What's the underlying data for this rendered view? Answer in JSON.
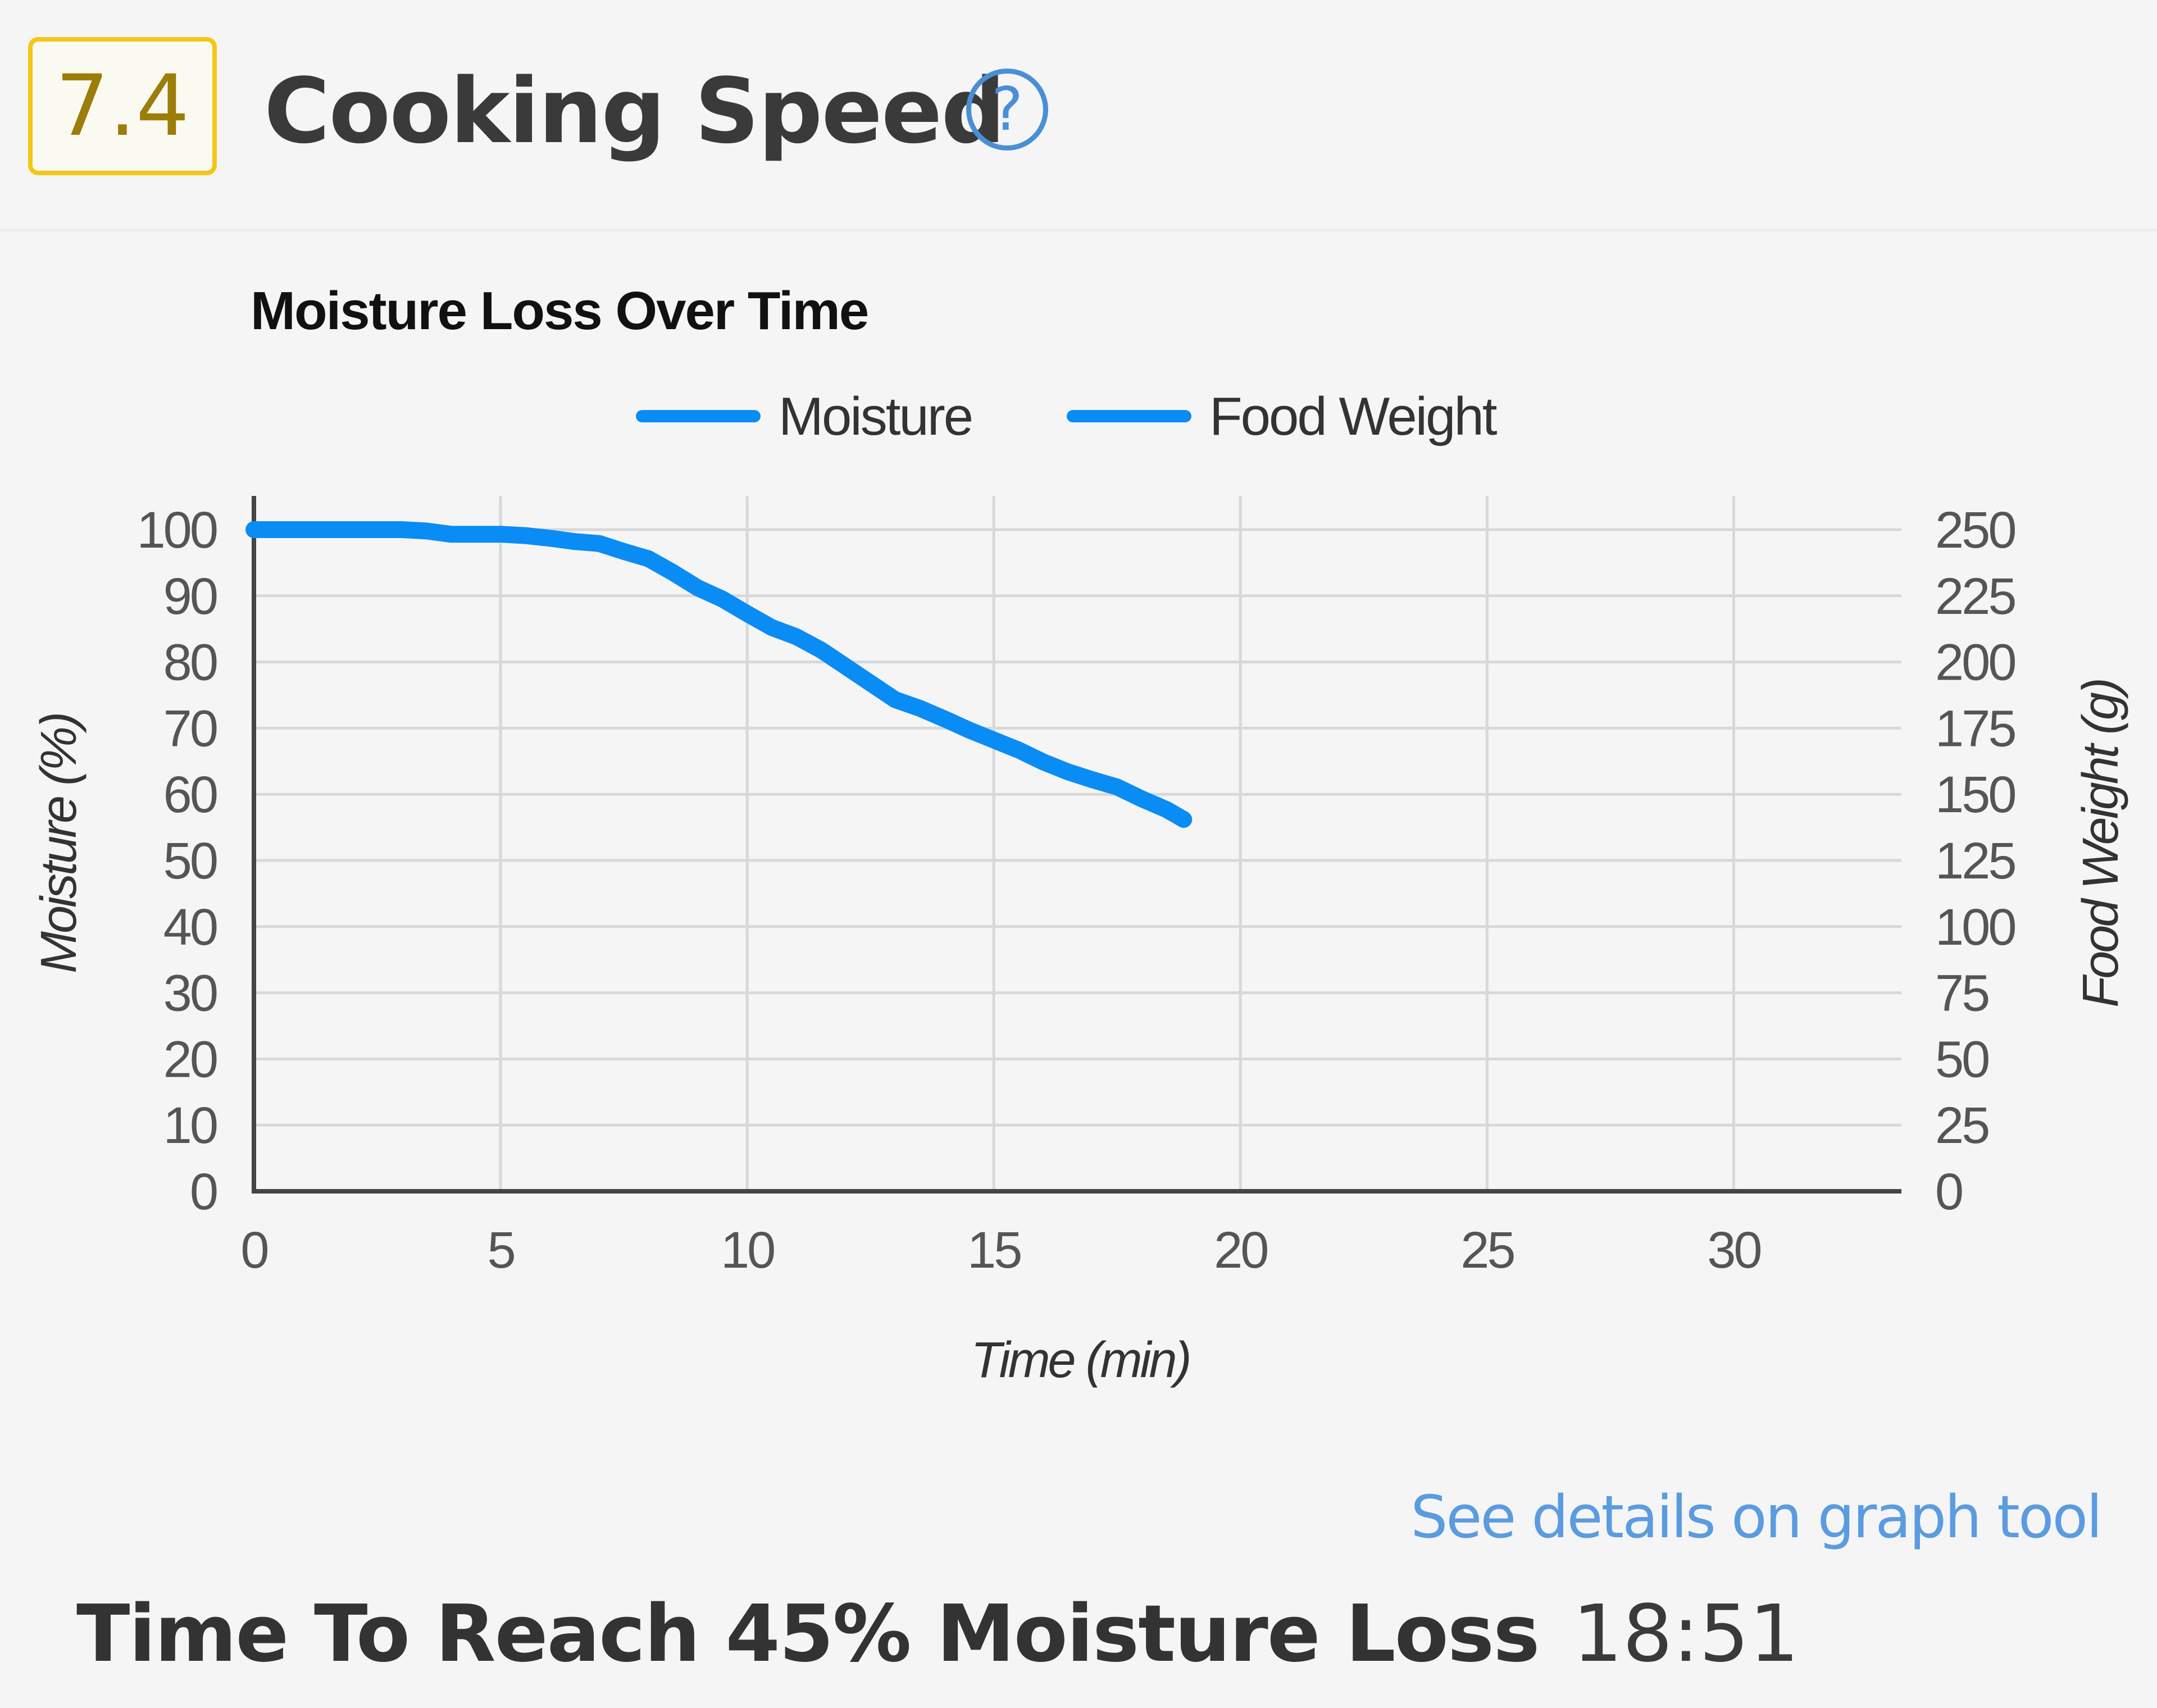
{
  "header": {
    "score": "7.4",
    "title": "Cooking Speed",
    "help_icon": "question-circle-icon",
    "help_glyph": "?"
  },
  "colors": {
    "badge_border": "#f2c715",
    "badge_text": "#9b7d08",
    "series_line": "#0a8cf5",
    "link": "#5b9be0",
    "grid": "#d8d8d8",
    "axis": "#444444"
  },
  "chart_data": {
    "type": "line",
    "title": "Moisture Loss Over Time",
    "xlabel": "Time (min)",
    "ylabel": "Moisture (%)",
    "y2label": "Food Weight (g)",
    "xlim": [
      0,
      33.4
    ],
    "ylim": [
      0,
      100
    ],
    "y2lim": [
      0,
      250
    ],
    "xticks": [
      0,
      5,
      10,
      15,
      20,
      25,
      30
    ],
    "yticks": [
      0,
      10,
      20,
      30,
      40,
      50,
      60,
      70,
      80,
      90,
      100
    ],
    "y2ticks": [
      0,
      25,
      50,
      75,
      100,
      125,
      150,
      175,
      200,
      225,
      250
    ],
    "grid": true,
    "legend_position": "top",
    "legend": [
      "Moisture",
      "Food Weight"
    ],
    "series": [
      {
        "name": "Moisture",
        "axis": "left",
        "x": [
          0,
          1,
          2,
          3,
          3.5,
          4,
          4.5,
          5,
          5.5,
          6,
          6.5,
          7,
          7.5,
          8,
          8.5,
          9,
          9.5,
          10,
          10.5,
          11,
          11.5,
          12,
          12.5,
          13,
          13.5,
          14,
          14.5,
          15,
          15.5,
          16,
          16.5,
          17,
          17.5,
          18,
          18.5,
          18.85
        ],
        "y": [
          100,
          100,
          100,
          100,
          99.8,
          99.3,
          99.3,
          99.3,
          99.1,
          98.7,
          98.2,
          97.9,
          96.7,
          95.6,
          93.5,
          91.2,
          89.5,
          87.3,
          85.2,
          83.8,
          81.8,
          79.3,
          76.8,
          74.3,
          73.0,
          71.4,
          69.7,
          68.2,
          66.7,
          64.9,
          63.4,
          62.2,
          61.1,
          59.3,
          57.7,
          56.2
        ]
      },
      {
        "name": "Food Weight",
        "axis": "right",
        "x": [],
        "y": []
      }
    ]
  },
  "footer": {
    "details_link": "See details on graph tool",
    "metric_label": "Time To Reach 45% Moisture Loss",
    "metric_value": "18:51"
  }
}
